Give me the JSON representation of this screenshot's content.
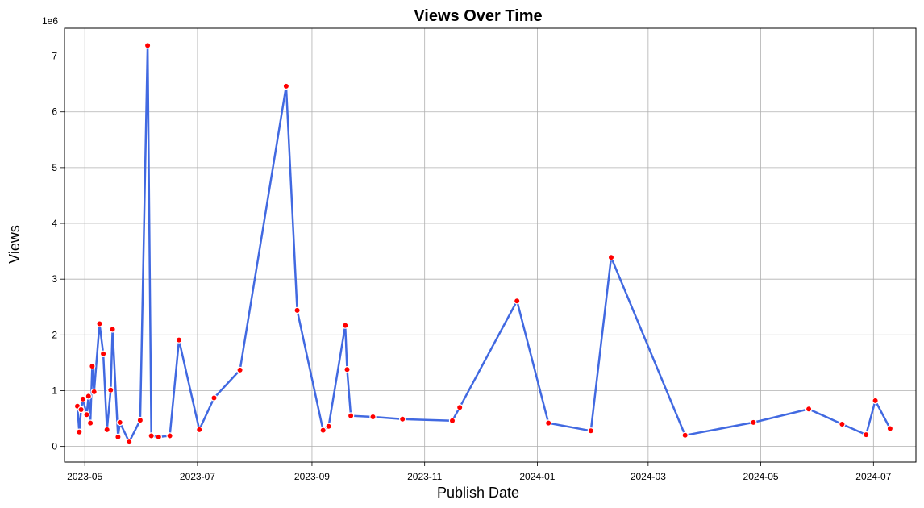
{
  "chart_data": {
    "type": "line",
    "title": "Views Over Time",
    "xlabel": "Publish Date",
    "ylabel": "Views",
    "y_offset_label": "1e6",
    "ylim": [
      -280000,
      7500000
    ],
    "xlim": [
      "2023-04-20",
      "2024-07-24"
    ],
    "grid": true,
    "line_color": "#4169e1",
    "marker_color": "#ff0000",
    "marker_edge_color": "#ffffff",
    "x_ticks": [
      "2023-05-01",
      "2023-07-01",
      "2023-09-01",
      "2023-11-01",
      "2024-01-01",
      "2024-03-01",
      "2024-05-01",
      "2024-07-01"
    ],
    "x_tick_labels": [
      "2023-05",
      "2023-07",
      "2023-09",
      "2023-11",
      "2024-01",
      "2024-03",
      "2024-05",
      "2024-07"
    ],
    "y_ticks": [
      0,
      1000000,
      2000000,
      3000000,
      4000000,
      5000000,
      6000000,
      7000000
    ],
    "y_tick_labels": [
      "0",
      "1",
      "2",
      "3",
      "4",
      "5",
      "6",
      "7"
    ],
    "x": [
      "2023-04-27",
      "2023-04-28",
      "2023-04-29",
      "2023-04-30",
      "2023-05-02",
      "2023-05-03",
      "2023-05-04",
      "2023-05-05",
      "2023-05-06",
      "2023-05-09",
      "2023-05-11",
      "2023-05-13",
      "2023-05-15",
      "2023-05-16",
      "2023-05-19",
      "2023-05-20",
      "2023-05-25",
      "2023-05-31",
      "2023-06-04",
      "2023-06-06",
      "2023-06-10",
      "2023-06-16",
      "2023-06-21",
      "2023-07-02",
      "2023-07-10",
      "2023-07-24",
      "2023-08-18",
      "2023-08-24",
      "2023-09-07",
      "2023-09-10",
      "2023-09-19",
      "2023-09-20",
      "2023-09-22",
      "2023-10-04",
      "2023-10-20",
      "2023-11-16",
      "2023-11-20",
      "2023-12-21",
      "2024-01-07",
      "2024-01-30",
      "2024-02-10",
      "2024-03-21",
      "2024-04-27",
      "2024-05-27",
      "2024-06-14",
      "2024-06-27",
      "2024-07-02",
      "2024-07-10"
    ],
    "y": [
      720000,
      260000,
      660000,
      850000,
      570000,
      900000,
      420000,
      1440000,
      980000,
      2200000,
      1660000,
      300000,
      1010000,
      2100000,
      170000,
      430000,
      80000,
      470000,
      7190000,
      190000,
      170000,
      190000,
      1910000,
      300000,
      870000,
      1370000,
      6460000,
      2440000,
      290000,
      360000,
      2170000,
      1380000,
      550000,
      530000,
      490000,
      460000,
      700000,
      2610000,
      420000,
      280000,
      3390000,
      200000,
      430000,
      670000,
      400000,
      210000,
      820000,
      320000
    ]
  }
}
